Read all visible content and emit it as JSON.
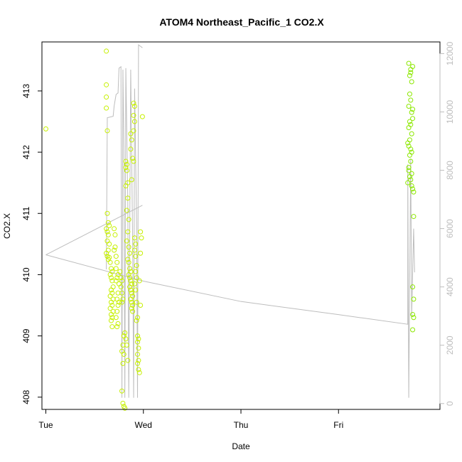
{
  "chart_data": {
    "type": "scatter",
    "title": "ATOM4 Northeast_Pacific_1 CO2.X",
    "xlabel": "Date",
    "ylabel": "CO2.X",
    "x_ticks": [
      "Tue",
      "Wed",
      "Thu",
      "Fri"
    ],
    "x_unit": "days since Tue 00:00",
    "xlim": [
      -0.04,
      4.04
    ],
    "ylim": [
      407.8,
      413.8
    ],
    "y_ticks": [
      408,
      409,
      410,
      411,
      412,
      413
    ],
    "y2lim": [
      -200,
      12400
    ],
    "y2_ticks": [
      0,
      2000,
      4000,
      6000,
      8000,
      10000,
      12000
    ],
    "grid": false,
    "colors": {
      "points": "#c6f000",
      "points_late": "#8ce800",
      "line": "#bdbdbd",
      "axis": "#000000",
      "axis_right": "#bdbdbd"
    },
    "series": [
      {
        "kind": "points",
        "points": [
          [
            0.0,
            412.38
          ],
          [
            0.62,
            413.65
          ],
          [
            0.62,
            413.1
          ],
          [
            0.62,
            412.9
          ],
          [
            0.62,
            412.72
          ],
          [
            0.63,
            412.35
          ],
          [
            0.63,
            411.0
          ],
          [
            0.64,
            410.85
          ],
          [
            0.62,
            410.75
          ],
          [
            0.63,
            410.7
          ],
          [
            0.65,
            410.8
          ],
          [
            0.64,
            410.65
          ],
          [
            0.63,
            410.55
          ],
          [
            0.65,
            410.5
          ],
          [
            0.64,
            410.4
          ],
          [
            0.62,
            410.35
          ],
          [
            0.63,
            410.3
          ],
          [
            0.65,
            410.28
          ],
          [
            0.64,
            410.25
          ],
          [
            0.66,
            410.2
          ],
          [
            0.67,
            410.1
          ],
          [
            0.68,
            410.05
          ],
          [
            0.66,
            410.0
          ],
          [
            0.67,
            409.95
          ],
          [
            0.68,
            409.9
          ],
          [
            0.69,
            409.8
          ],
          [
            0.67,
            409.75
          ],
          [
            0.68,
            409.7
          ],
          [
            0.66,
            409.65
          ],
          [
            0.69,
            409.6
          ],
          [
            0.67,
            409.55
          ],
          [
            0.68,
            409.5
          ],
          [
            0.66,
            409.45
          ],
          [
            0.69,
            409.4
          ],
          [
            0.67,
            409.35
          ],
          [
            0.68,
            409.3
          ],
          [
            0.67,
            409.25
          ],
          [
            0.68,
            409.15
          ],
          [
            0.7,
            410.4
          ],
          [
            0.71,
            410.45
          ],
          [
            0.72,
            410.3
          ],
          [
            0.73,
            410.2
          ],
          [
            0.72,
            410.1
          ],
          [
            0.74,
            410.0
          ],
          [
            0.73,
            409.95
          ],
          [
            0.72,
            409.9
          ],
          [
            0.75,
            409.85
          ],
          [
            0.74,
            409.7
          ],
          [
            0.73,
            409.6
          ],
          [
            0.75,
            409.55
          ],
          [
            0.74,
            409.5
          ],
          [
            0.73,
            409.4
          ],
          [
            0.72,
            409.3
          ],
          [
            0.74,
            409.2
          ],
          [
            0.73,
            409.15
          ],
          [
            0.7,
            410.75
          ],
          [
            0.71,
            410.65
          ],
          [
            0.76,
            410.05
          ],
          [
            0.77,
            409.95
          ],
          [
            0.78,
            409.9
          ],
          [
            0.77,
            409.8
          ],
          [
            0.78,
            409.7
          ],
          [
            0.79,
            409.6
          ],
          [
            0.78,
            409.55
          ],
          [
            0.79,
            408.85
          ],
          [
            0.78,
            408.75
          ],
          [
            0.8,
            408.7
          ],
          [
            0.79,
            408.55
          ],
          [
            0.78,
            408.1
          ],
          [
            0.79,
            407.9
          ],
          [
            0.8,
            407.85
          ],
          [
            0.81,
            407.82
          ],
          [
            0.8,
            409.0
          ],
          [
            0.81,
            409.05
          ],
          [
            0.82,
            408.95
          ],
          [
            0.83,
            408.85
          ],
          [
            0.84,
            408.6
          ],
          [
            0.82,
            411.85
          ],
          [
            0.83,
            411.8
          ],
          [
            0.82,
            411.75
          ],
          [
            0.83,
            411.7
          ],
          [
            0.82,
            411.45
          ],
          [
            0.84,
            411.25
          ],
          [
            0.84,
            411.5
          ],
          [
            0.83,
            411.05
          ],
          [
            0.85,
            410.9
          ],
          [
            0.84,
            410.7
          ],
          [
            0.83,
            410.55
          ],
          [
            0.85,
            410.45
          ],
          [
            0.86,
            410.35
          ],
          [
            0.84,
            410.25
          ],
          [
            0.85,
            410.2
          ],
          [
            0.86,
            410.1
          ],
          [
            0.87,
            410.05
          ],
          [
            0.85,
            410.0
          ],
          [
            0.86,
            409.95
          ],
          [
            0.87,
            409.9
          ],
          [
            0.88,
            409.85
          ],
          [
            0.86,
            409.8
          ],
          [
            0.87,
            409.75
          ],
          [
            0.88,
            409.7
          ],
          [
            0.89,
            409.65
          ],
          [
            0.87,
            409.6
          ],
          [
            0.88,
            409.55
          ],
          [
            0.89,
            409.5
          ],
          [
            0.88,
            409.45
          ],
          [
            0.89,
            409.4
          ],
          [
            0.87,
            412.3
          ],
          [
            0.88,
            412.2
          ],
          [
            0.87,
            412.05
          ],
          [
            0.89,
            411.9
          ],
          [
            0.88,
            411.55
          ],
          [
            0.9,
            411.85
          ],
          [
            0.9,
            412.8
          ],
          [
            0.91,
            412.75
          ],
          [
            0.9,
            412.6
          ],
          [
            0.91,
            412.5
          ],
          [
            0.9,
            412.35
          ],
          [
            0.91,
            410.6
          ],
          [
            0.92,
            410.5
          ],
          [
            0.91,
            410.4
          ],
          [
            0.92,
            410.3
          ],
          [
            0.93,
            410.15
          ],
          [
            0.92,
            410.05
          ],
          [
            0.93,
            409.95
          ],
          [
            0.91,
            409.85
          ],
          [
            0.92,
            409.75
          ],
          [
            0.93,
            409.55
          ],
          [
            0.94,
            409.3
          ],
          [
            0.93,
            409.25
          ],
          [
            0.94,
            409.0
          ],
          [
            0.95,
            408.95
          ],
          [
            0.94,
            408.9
          ],
          [
            0.95,
            408.8
          ],
          [
            0.94,
            408.7
          ],
          [
            0.95,
            408.6
          ],
          [
            0.94,
            408.55
          ],
          [
            0.95,
            408.45
          ],
          [
            0.96,
            408.4
          ],
          [
            0.97,
            410.7
          ],
          [
            0.97,
            410.35
          ],
          [
            0.98,
            410.6
          ],
          [
            0.99,
            412.58
          ],
          [
            0.96,
            409.9
          ],
          [
            0.97,
            409.5
          ]
        ]
      },
      {
        "kind": "points_late",
        "points": [
          [
            3.72,
            413.45
          ],
          [
            3.74,
            413.35
          ],
          [
            3.73,
            413.25
          ],
          [
            3.75,
            413.15
          ],
          [
            3.74,
            413.3
          ],
          [
            3.76,
            413.4
          ],
          [
            3.73,
            412.95
          ],
          [
            3.74,
            412.85
          ],
          [
            3.72,
            412.75
          ],
          [
            3.75,
            412.65
          ],
          [
            3.76,
            412.7
          ],
          [
            3.73,
            412.5
          ],
          [
            3.74,
            412.45
          ],
          [
            3.72,
            412.4
          ],
          [
            3.75,
            412.3
          ],
          [
            3.76,
            412.55
          ],
          [
            3.73,
            412.2
          ],
          [
            3.72,
            412.1
          ],
          [
            3.74,
            412.05
          ],
          [
            3.75,
            412.0
          ],
          [
            3.73,
            411.95
          ],
          [
            3.74,
            411.85
          ],
          [
            3.72,
            411.7
          ],
          [
            3.73,
            411.6
          ],
          [
            3.74,
            411.55
          ],
          [
            3.75,
            411.45
          ],
          [
            3.76,
            411.4
          ],
          [
            3.77,
            411.35
          ],
          [
            3.75,
            411.65
          ],
          [
            3.71,
            412.15
          ],
          [
            3.72,
            411.75
          ],
          [
            3.71,
            411.5
          ],
          [
            3.77,
            410.95
          ],
          [
            3.76,
            409.8
          ],
          [
            3.77,
            409.6
          ],
          [
            3.76,
            409.35
          ],
          [
            3.77,
            409.3
          ],
          [
            3.76,
            409.1
          ]
        ]
      },
      {
        "kind": "line",
        "axis": "y2",
        "points": [
          [
            0.0,
            5100
          ],
          [
            1.0,
            4200
          ],
          [
            2.0,
            3500
          ],
          [
            3.0,
            3050
          ],
          [
            3.71,
            2720
          ],
          [
            3.71,
            8200
          ],
          [
            3.72,
            200
          ],
          [
            3.74,
            8400
          ],
          [
            3.75,
            3000
          ],
          [
            3.77,
            6000
          ],
          [
            3.78,
            4500
          ]
        ]
      },
      {
        "kind": "line",
        "axis": "y2",
        "points": [
          [
            0.62,
            4600
          ],
          [
            0.63,
            9800
          ],
          [
            0.69,
            9850
          ],
          [
            0.7,
            10200
          ],
          [
            0.72,
            10600
          ],
          [
            0.74,
            10650
          ],
          [
            0.75,
            11500
          ],
          [
            0.77,
            11550
          ],
          [
            0.78,
            200
          ],
          [
            0.79,
            11450
          ],
          [
            0.8,
            8800
          ],
          [
            0.81,
            200
          ],
          [
            0.82,
            11500
          ],
          [
            0.84,
            7000
          ],
          [
            0.85,
            200
          ],
          [
            0.87,
            11450
          ],
          [
            0.89,
            5500
          ],
          [
            0.9,
            200
          ],
          [
            0.91,
            10800
          ],
          [
            0.93,
            6200
          ],
          [
            0.94,
            200
          ],
          [
            0.95,
            12300
          ],
          [
            0.97,
            12250
          ],
          [
            0.99,
            12200
          ]
        ]
      },
      {
        "kind": "line",
        "axis": "y2",
        "points": [
          [
            0.0,
            5100
          ],
          [
            0.99,
            6800
          ]
        ]
      }
    ]
  }
}
